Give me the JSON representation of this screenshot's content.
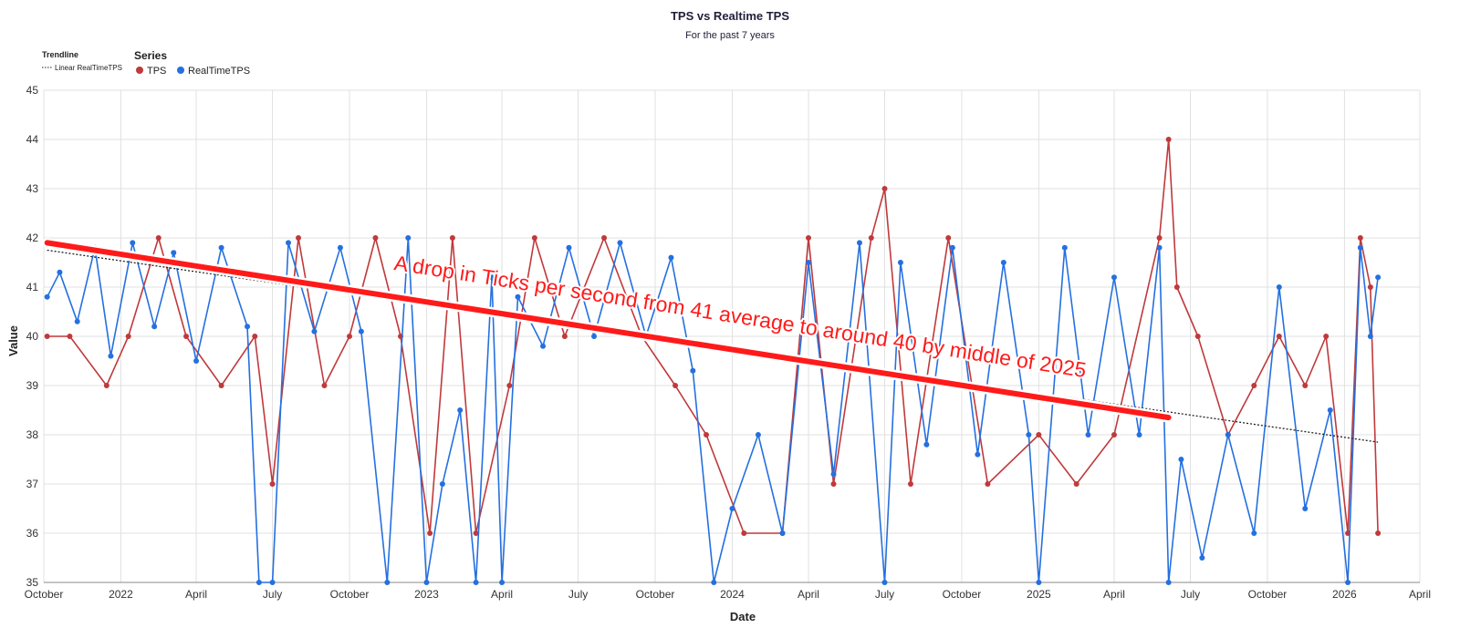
{
  "chart_data": {
    "type": "line",
    "title": "TPS vs Realtime TPS",
    "subtitle": "For the past 7 years",
    "xlabel": "Date",
    "ylabel": "Value",
    "ylim": [
      35,
      45
    ],
    "y_ticks": [
      35,
      36,
      37,
      38,
      39,
      40,
      41,
      42,
      43,
      44,
      45
    ],
    "x_range": [
      "2021-10-01",
      "2026-04-01"
    ],
    "x_ticks": [
      {
        "date": "2021-10-01",
        "label": "October"
      },
      {
        "date": "2022-01-01",
        "label": "2022"
      },
      {
        "date": "2022-04-01",
        "label": "April"
      },
      {
        "date": "2022-07-01",
        "label": "July"
      },
      {
        "date": "2022-10-01",
        "label": "October"
      },
      {
        "date": "2023-01-01",
        "label": "2023"
      },
      {
        "date": "2023-04-01",
        "label": "April"
      },
      {
        "date": "2023-07-01",
        "label": "July"
      },
      {
        "date": "2023-10-01",
        "label": "October"
      },
      {
        "date": "2024-01-01",
        "label": "2024"
      },
      {
        "date": "2024-04-01",
        "label": "April"
      },
      {
        "date": "2024-07-01",
        "label": "July"
      },
      {
        "date": "2024-10-01",
        "label": "October"
      },
      {
        "date": "2025-01-01",
        "label": "2025"
      },
      {
        "date": "2025-04-01",
        "label": "April"
      },
      {
        "date": "2025-07-01",
        "label": "July"
      },
      {
        "date": "2025-10-01",
        "label": "October"
      },
      {
        "date": "2026-01-01",
        "label": "2026"
      },
      {
        "date": "2026-04-01",
        "label": "April"
      }
    ],
    "grid": true,
    "legend": {
      "title": "Series",
      "placement": "top-left",
      "trendline_title": "Trendline",
      "trendline_label": "Linear RealTimeTPS"
    },
    "series": [
      {
        "name": "TPS",
        "color": "#c0393b",
        "points": [
          [
            "2021-10-05",
            40.0
          ],
          [
            "2021-11-01",
            40.0
          ],
          [
            "2021-12-15",
            39.0
          ],
          [
            "2022-01-10",
            40.0
          ],
          [
            "2022-02-15",
            42.0
          ],
          [
            "2022-03-20",
            40.0
          ],
          [
            "2022-05-01",
            39.0
          ],
          [
            "2022-06-10",
            40.0
          ],
          [
            "2022-07-01",
            37.0
          ],
          [
            "2022-08-01",
            42.0
          ],
          [
            "2022-09-01",
            39.0
          ],
          [
            "2022-10-01",
            40.0
          ],
          [
            "2022-11-01",
            42.0
          ],
          [
            "2022-12-01",
            40.0
          ],
          [
            "2023-01-05",
            36.0
          ],
          [
            "2023-02-01",
            42.0
          ],
          [
            "2023-03-01",
            36.0
          ],
          [
            "2023-04-10",
            39.0
          ],
          [
            "2023-05-10",
            42.0
          ],
          [
            "2023-06-15",
            40.0
          ],
          [
            "2023-08-01",
            42.0
          ],
          [
            "2023-09-15",
            40.0
          ],
          [
            "2023-10-25",
            39.0
          ],
          [
            "2023-12-01",
            38.0
          ],
          [
            "2024-01-15",
            36.0
          ],
          [
            "2024-03-01",
            36.0
          ],
          [
            "2024-04-01",
            42.0
          ],
          [
            "2024-05-01",
            37.0
          ],
          [
            "2024-06-15",
            42.0
          ],
          [
            "2024-07-01",
            43.0
          ],
          [
            "2024-08-01",
            37.0
          ],
          [
            "2024-09-15",
            42.0
          ],
          [
            "2024-11-01",
            37.0
          ],
          [
            "2025-01-01",
            38.0
          ],
          [
            "2025-02-15",
            37.0
          ],
          [
            "2025-04-01",
            38.0
          ],
          [
            "2025-05-25",
            42.0
          ],
          [
            "2025-06-05",
            44.0
          ],
          [
            "2025-06-15",
            41.0
          ],
          [
            "2025-07-10",
            40.0
          ],
          [
            "2025-08-15",
            38.0
          ],
          [
            "2025-09-15",
            39.0
          ],
          [
            "2025-10-15",
            40.0
          ],
          [
            "2025-11-15",
            39.0
          ],
          [
            "2025-12-10",
            40.0
          ],
          [
            "2026-01-05",
            36.0
          ],
          [
            "2026-01-20",
            42.0
          ],
          [
            "2026-02-01",
            41.0
          ],
          [
            "2026-02-10",
            36.0
          ]
        ]
      },
      {
        "name": "RealTimeTPS",
        "color": "#2470e0",
        "points": [
          [
            "2021-10-05",
            40.8
          ],
          [
            "2021-10-20",
            41.3
          ],
          [
            "2021-11-10",
            40.3
          ],
          [
            "2021-12-01",
            41.8
          ],
          [
            "2021-12-20",
            39.6
          ],
          [
            "2022-01-15",
            41.9
          ],
          [
            "2022-02-10",
            40.2
          ],
          [
            "2022-03-05",
            41.7
          ],
          [
            "2022-04-01",
            39.5
          ],
          [
            "2022-05-01",
            41.8
          ],
          [
            "2022-06-01",
            40.2
          ],
          [
            "2022-06-15",
            35.0
          ],
          [
            "2022-07-01",
            35.0
          ],
          [
            "2022-07-20",
            41.9
          ],
          [
            "2022-08-20",
            40.1
          ],
          [
            "2022-09-20",
            41.8
          ],
          [
            "2022-10-15",
            40.1
          ],
          [
            "2022-11-15",
            35.0
          ],
          [
            "2022-12-10",
            42.0
          ],
          [
            "2023-01-01",
            35.0
          ],
          [
            "2023-01-20",
            37.0
          ],
          [
            "2023-02-10",
            38.5
          ],
          [
            "2023-03-01",
            35.0
          ],
          [
            "2023-03-20",
            41.2
          ],
          [
            "2023-04-01",
            35.0
          ],
          [
            "2023-04-20",
            40.8
          ],
          [
            "2023-05-20",
            39.8
          ],
          [
            "2023-06-20",
            41.8
          ],
          [
            "2023-07-20",
            40.0
          ],
          [
            "2023-08-20",
            41.9
          ],
          [
            "2023-09-20",
            40.0
          ],
          [
            "2023-10-20",
            41.6
          ],
          [
            "2023-11-15",
            39.3
          ],
          [
            "2023-12-10",
            35.0
          ],
          [
            "2024-01-01",
            36.5
          ],
          [
            "2024-02-01",
            38.0
          ],
          [
            "2024-03-01",
            36.0
          ],
          [
            "2024-04-01",
            41.5
          ],
          [
            "2024-05-01",
            37.2
          ],
          [
            "2024-06-01",
            41.9
          ],
          [
            "2024-07-01",
            35.0
          ],
          [
            "2024-07-20",
            41.5
          ],
          [
            "2024-08-20",
            37.8
          ],
          [
            "2024-09-20",
            41.8
          ],
          [
            "2024-10-20",
            37.6
          ],
          [
            "2024-11-20",
            41.5
          ],
          [
            "2024-12-20",
            38.0
          ],
          [
            "2025-01-01",
            35.0
          ],
          [
            "2025-02-01",
            41.8
          ],
          [
            "2025-03-01",
            38.0
          ],
          [
            "2025-04-01",
            41.2
          ],
          [
            "2025-05-01",
            38.0
          ],
          [
            "2025-05-25",
            41.8
          ],
          [
            "2025-06-05",
            35.0
          ],
          [
            "2025-06-20",
            37.5
          ],
          [
            "2025-07-15",
            35.5
          ],
          [
            "2025-08-15",
            38.0
          ],
          [
            "2025-09-15",
            36.0
          ],
          [
            "2025-10-15",
            41.0
          ],
          [
            "2025-11-15",
            36.5
          ],
          [
            "2025-12-15",
            38.5
          ],
          [
            "2026-01-05",
            35.0
          ],
          [
            "2026-01-20",
            41.8
          ],
          [
            "2026-02-01",
            40.0
          ],
          [
            "2026-02-10",
            41.2
          ]
        ]
      }
    ],
    "trendline": {
      "name": "Linear RealTimeTPS",
      "style": "dotted",
      "color": "#222222",
      "start": [
        "2021-10-05",
        41.75
      ],
      "end": [
        "2026-02-10",
        37.85
      ]
    },
    "annotation": {
      "text": "A drop in Ticks per second from 41 average to around 40 by middle of 2025",
      "color": "#ff1a1a",
      "line_start": [
        "2021-10-05",
        41.9
      ],
      "line_end": [
        "2025-06-05",
        38.35
      ]
    }
  }
}
